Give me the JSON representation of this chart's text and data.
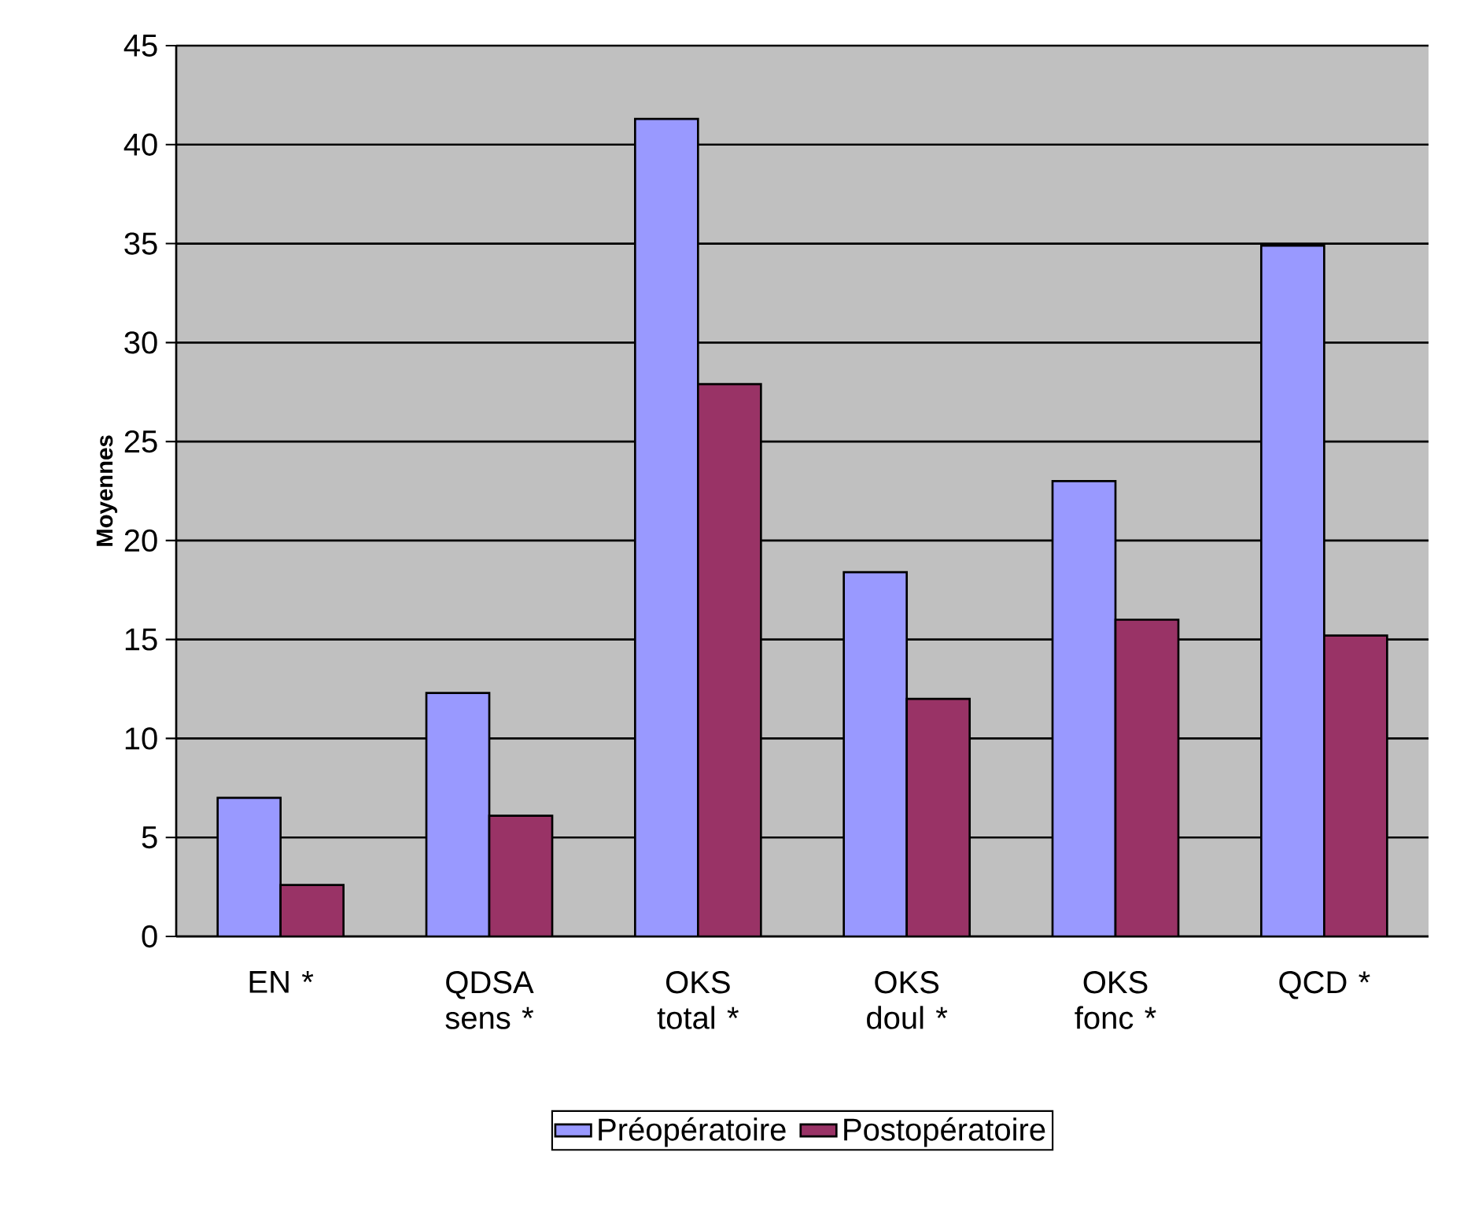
{
  "chart_data": {
    "type": "bar",
    "ylabel": "Moyennes",
    "categories": [
      "EN *",
      "QDSA sens *",
      "OKS total *",
      "OKS doul *",
      "OKS fonc *",
      "QCD *"
    ],
    "series": [
      {
        "name": "Préopératoire",
        "color": "#9999ff",
        "values": [
          7.0,
          12.3,
          41.3,
          18.4,
          23.0,
          34.9
        ]
      },
      {
        "name": "Postopératoire",
        "color": "#993366",
        "values": [
          2.6,
          6.1,
          27.9,
          12.0,
          16.0,
          15.2
        ]
      }
    ],
    "ylim": [
      0,
      45
    ],
    "yticks": [
      0,
      5,
      10,
      15,
      20,
      25,
      30,
      35,
      40,
      45
    ],
    "grid": "y",
    "legend": "bottom"
  }
}
